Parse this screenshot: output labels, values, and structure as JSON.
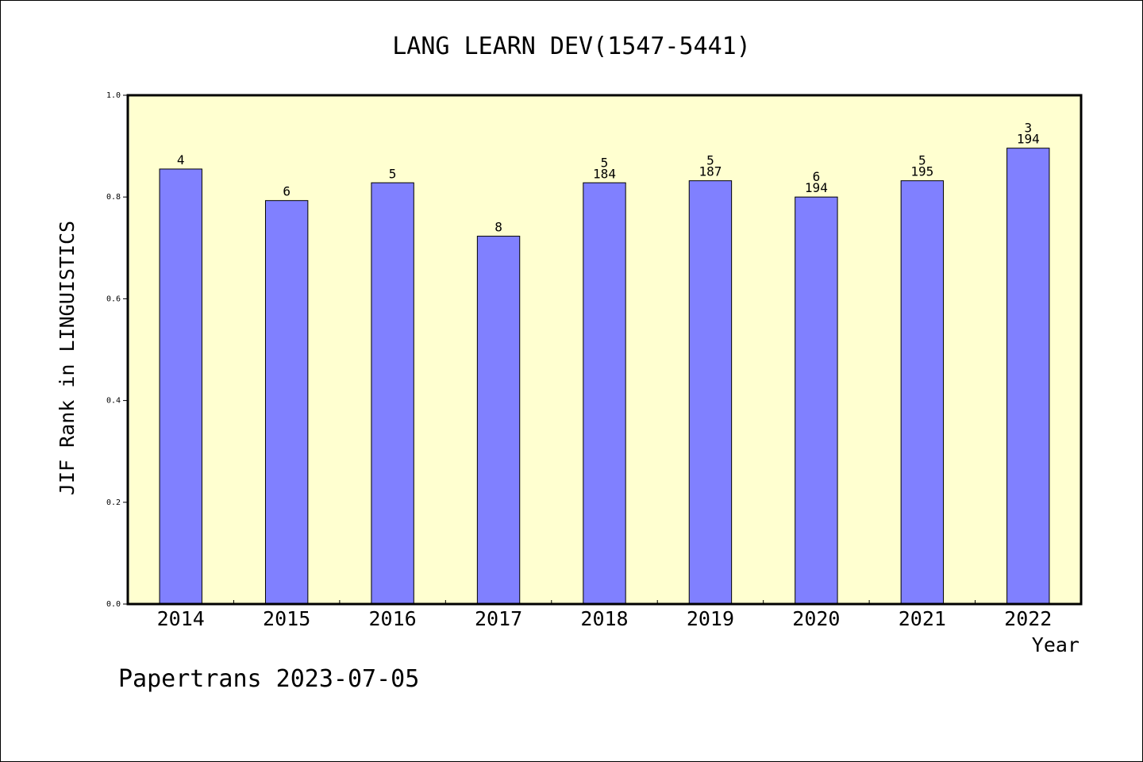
{
  "chart_data": {
    "type": "bar",
    "title": "LANG LEARN DEV(1547-5441)",
    "xlabel": "Year",
    "ylabel": "JIF Rank in LINGUISTICS",
    "ylim": [
      0,
      1.0
    ],
    "yticks": [
      "0.0",
      "0.2",
      "0.4",
      "0.6",
      "0.8",
      "1.0"
    ],
    "categories": [
      "2014",
      "2015",
      "2016",
      "2017",
      "2018",
      "2019",
      "2020",
      "2021",
      "2022"
    ],
    "values": [
      0.855,
      0.793,
      0.828,
      0.723,
      0.828,
      0.832,
      0.8,
      0.832,
      0.896
    ],
    "labels": [
      [
        "4"
      ],
      [
        "6"
      ],
      [
        "5"
      ],
      [
        "8"
      ],
      [
        "5",
        "184"
      ],
      [
        "5",
        "187"
      ],
      [
        "6",
        "194"
      ],
      [
        "5",
        "195"
      ],
      [
        "3",
        "194"
      ]
    ],
    "grid": false,
    "legend": "none",
    "colors": {
      "bar": "#8080ff",
      "plot_background": "#ffffd0",
      "border": "#000000"
    }
  },
  "footer": "Papertrans 2023-07-05"
}
